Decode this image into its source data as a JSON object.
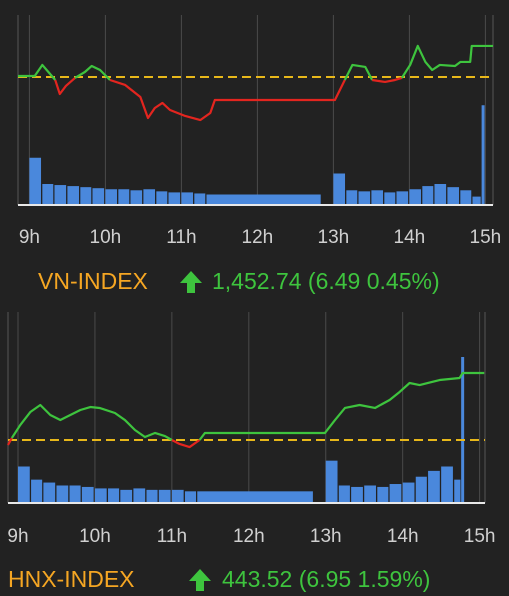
{
  "chart_data": [
    {
      "type": "line",
      "title": "VN-INDEX",
      "value_text": "1,452.74 (6.49 0.45%)",
      "up_color": "#3ec43e",
      "down_color": "#e3251f",
      "title_color": "#f5a623",
      "reference_line": 1446.25,
      "reference_color": "#e8b81a",
      "xlim": [
        8.85,
        15.1
      ],
      "ylim": [
        1419.5,
        1459.2
      ],
      "xticks": [
        {
          "value": 9,
          "label": "9h"
        },
        {
          "value": 10,
          "label": "10h"
        },
        {
          "value": 11,
          "label": "11h"
        },
        {
          "value": 12,
          "label": "12h"
        },
        {
          "value": 13,
          "label": "13h"
        },
        {
          "value": 14,
          "label": "14h"
        },
        {
          "value": 15,
          "label": "15h"
        }
      ],
      "x": [
        8.85,
        9.07,
        9.17,
        9.25,
        9.34,
        9.4,
        9.48,
        9.6,
        9.73,
        9.82,
        9.93,
        10.06,
        10.26,
        10.46,
        10.56,
        10.65,
        10.75,
        10.85,
        11.05,
        11.25,
        11.38,
        11.44,
        11.9,
        13.02,
        13.15,
        13.25,
        13.42,
        13.51,
        13.68,
        13.81,
        13.9,
        14.01,
        14.11,
        14.21,
        14.3,
        14.4,
        14.6,
        14.67,
        14.8,
        14.82,
        15.1
      ],
      "values": [
        1446.46,
        1446.46,
        1448.76,
        1447.29,
        1445.62,
        1442.69,
        1444.37,
        1446.04,
        1447.29,
        1448.55,
        1447.71,
        1445.62,
        1444.58,
        1442.07,
        1437.68,
        1439.77,
        1440.82,
        1439.35,
        1438.1,
        1437.26,
        1438.73,
        1441.44,
        1441.44,
        1441.44,
        1445.62,
        1448.76,
        1448.34,
        1445.62,
        1445.21,
        1445.62,
        1446.04,
        1448.76,
        1452.74,
        1449.39,
        1447.71,
        1448.76,
        1448.55,
        1449.39,
        1449.39,
        1452.74,
        1452.74
      ],
      "volume": {
        "color": "#4a88dc",
        "ylim": [
          0,
          100
        ],
        "x": [
          9.0,
          9.17,
          9.33,
          9.5,
          9.67,
          9.83,
          10.0,
          10.17,
          10.33,
          10.5,
          10.67,
          10.83,
          11.0,
          11.17,
          11.33,
          13.0,
          13.17,
          13.33,
          13.5,
          13.67,
          13.83,
          14.0,
          14.17,
          14.33,
          14.5,
          14.67,
          14.83,
          14.95
        ],
        "values": [
          45,
          20,
          19,
          18,
          17,
          16,
          15,
          15,
          14,
          15,
          13,
          12,
          12,
          11,
          10,
          30,
          14,
          13,
          14,
          12,
          13,
          15,
          18,
          20,
          17,
          14,
          8,
          95
        ]
      }
    },
    {
      "type": "line",
      "title": "HNX-INDEX",
      "value_text": "443.52 (6.95 1.59%)",
      "up_color": "#3ec43e",
      "down_color": "#e3251f",
      "title_color": "#f5a623",
      "reference_line": 436.57,
      "reference_color": "#e8b81a",
      "xlim": [
        8.87,
        15.07
      ],
      "ylim": [
        430.04,
        449.84
      ],
      "xticks": [
        {
          "value": 9,
          "label": "9h"
        },
        {
          "value": 10,
          "label": "10h"
        },
        {
          "value": 11,
          "label": "11h"
        },
        {
          "value": 12,
          "label": "12h"
        },
        {
          "value": 13,
          "label": "13h"
        },
        {
          "value": 14,
          "label": "14h"
        },
        {
          "value": 15,
          "label": "15h"
        }
      ],
      "x": [
        8.87,
        8.92,
        9.03,
        9.16,
        9.29,
        9.42,
        9.55,
        9.68,
        9.81,
        9.94,
        10.06,
        10.26,
        10.39,
        10.52,
        10.65,
        10.78,
        10.91,
        11.0,
        11.1,
        11.23,
        11.36,
        11.43,
        12.14,
        12.99,
        13.12,
        13.25,
        13.44,
        13.64,
        13.83,
        13.96,
        14.09,
        14.22,
        14.48,
        14.74,
        14.78,
        15.06
      ],
      "values": [
        436.05,
        436.78,
        438.13,
        439.47,
        440.2,
        439.16,
        438.64,
        439.16,
        439.68,
        439.99,
        439.89,
        439.37,
        438.64,
        437.61,
        436.88,
        437.3,
        436.98,
        436.57,
        436.16,
        435.84,
        436.57,
        437.3,
        437.3,
        437.3,
        438.64,
        439.89,
        440.2,
        439.89,
        440.72,
        441.55,
        442.48,
        442.27,
        442.79,
        443.0,
        443.52,
        443.52
      ],
      "volume": {
        "color": "#4a88dc",
        "ylim": [
          0,
          100
        ],
        "x": [
          9.0,
          9.17,
          9.33,
          9.5,
          9.67,
          9.83,
          10.0,
          10.17,
          10.33,
          10.5,
          10.67,
          10.83,
          11.0,
          11.17,
          11.33,
          13.0,
          13.17,
          13.33,
          13.5,
          13.67,
          13.83,
          14.0,
          14.17,
          14.33,
          14.5,
          14.67,
          14.76
        ],
        "values": [
          25,
          16,
          14,
          12,
          12,
          11,
          10,
          10,
          9,
          10,
          9,
          9,
          9,
          8,
          8,
          29,
          12,
          11,
          12,
          11,
          13,
          14,
          18,
          22,
          25,
          16,
          100
        ]
      }
    }
  ]
}
